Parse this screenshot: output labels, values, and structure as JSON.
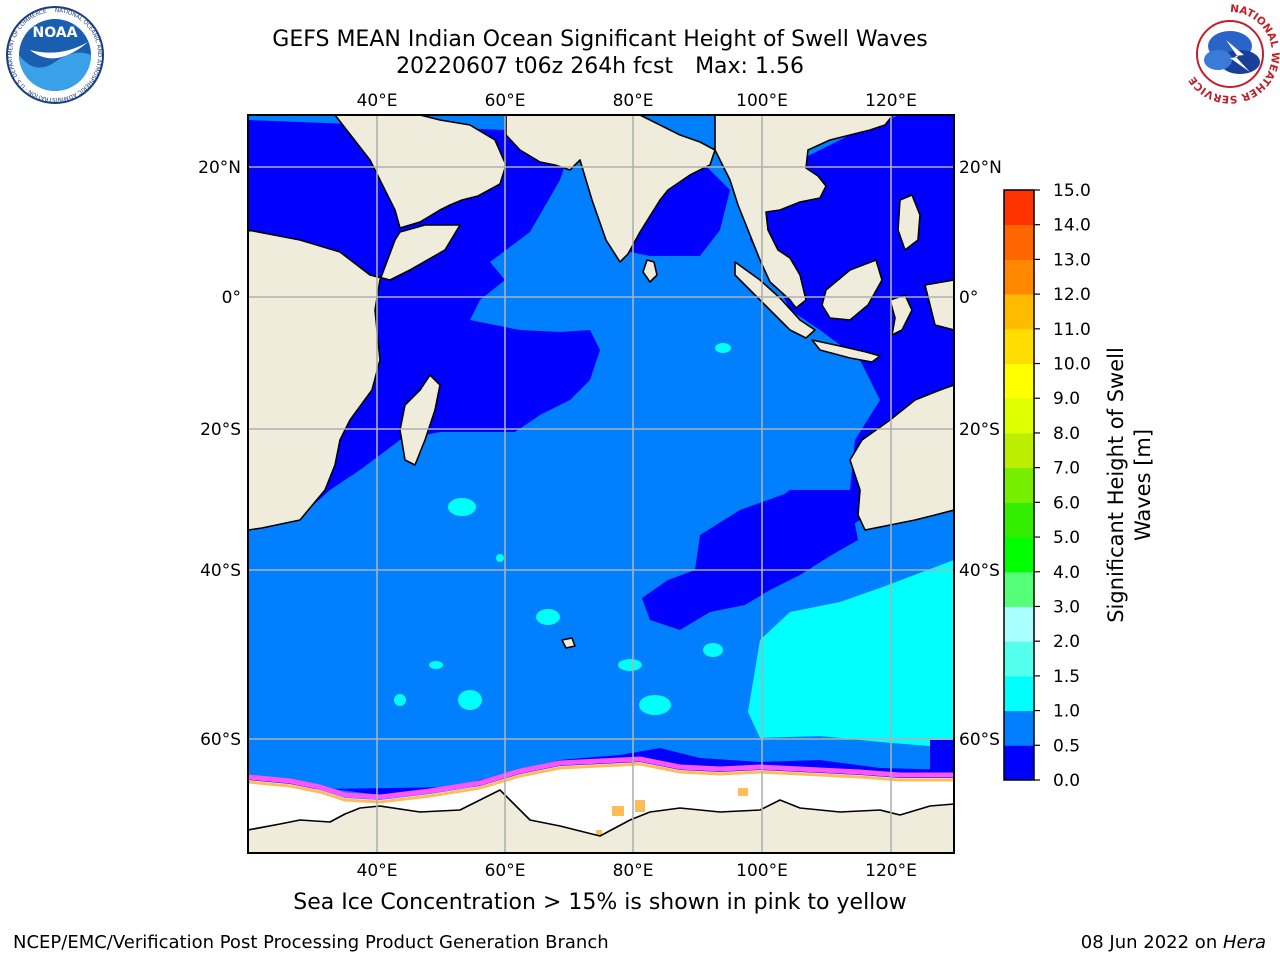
{
  "title": {
    "line1": "GEFS MEAN Indian Ocean Significant Height of Swell Waves",
    "date_run": "20220607 t06z 264h fcst",
    "max_label": "Max: 1.56"
  },
  "map": {
    "lon_ticks": [
      "40°E",
      "60°E",
      "80°E",
      "100°E",
      "120°E"
    ],
    "lat_ticks": [
      "20°N",
      "0°",
      "20°S",
      "40°S",
      "60°S"
    ],
    "colors": {
      "land": "#efecdc",
      "ice": "#ffffff",
      "swell_0_0_5": "#0000ff",
      "swell_0_5_1": "#007fff",
      "swell_1_1_5": "#00ffff",
      "ice_edge_pink": "#ff66ff",
      "ice_edge_orange": "#ffb347",
      "grid": "#b0b0b0"
    }
  },
  "colorbar": {
    "label_line1": "Significant Height of Swell",
    "label_line2": "Waves [m]",
    "ticks": [
      "0.0",
      "0.5",
      "1.0",
      "1.5",
      "2.0",
      "3.0",
      "4.0",
      "5.0",
      "6.0",
      "7.0",
      "8.0",
      "9.0",
      "10.0",
      "11.0",
      "12.0",
      "13.0",
      "14.0",
      "15.0"
    ],
    "bands": [
      "#0000ff",
      "#007fff",
      "#00ffff",
      "#55ffee",
      "#aaffff",
      "#55ff77",
      "#00ff00",
      "#33ee00",
      "#77ee00",
      "#bbee00",
      "#ddff00",
      "#ffff00",
      "#ffdd00",
      "#ffbb00",
      "#ff8800",
      "#ff6600",
      "#ff3300",
      "#ff0000"
    ]
  },
  "caption": "Sea Ice Concentration > 15% is shown in pink to yellow",
  "footer": {
    "left": "NCEP/EMC/Verification Post Processing Product Generation Branch",
    "date": "08 Jun 2022 on ",
    "machine": "Hera"
  },
  "logos": {
    "noaa_text": "NOAA",
    "noaa_ring": "NATIONAL OCEANIC AND ATMOSPHERIC ADMINISTRATION · U.S. DEPARTMENT OF COMMERCE",
    "nws_ring": "NATIONAL WEATHER SERVICE"
  }
}
